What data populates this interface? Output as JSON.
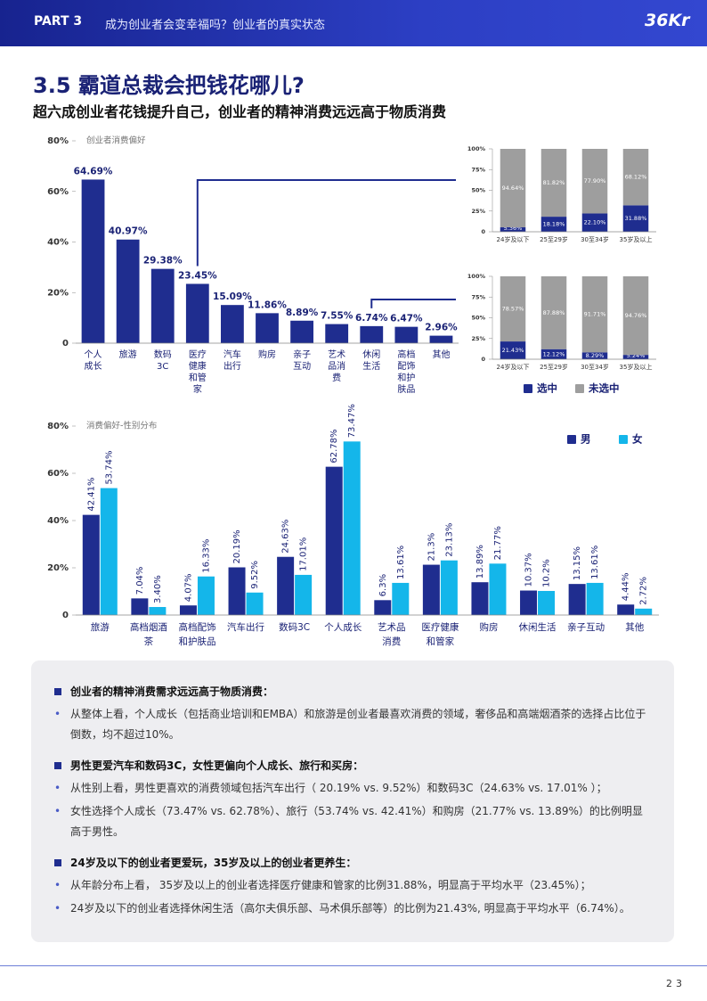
{
  "header": {
    "part": "PART 3",
    "title": "成为创业者会变幸福吗？创业者的真实状态",
    "logo": "36Kr"
  },
  "section": {
    "title": "3.5 霸道总裁会把钱花哪儿?",
    "subtitle": "超六成创业者花钱提升自己，创业者的精神消费远远高于物质消费"
  },
  "chart_data": [
    {
      "type": "bar",
      "title": "创业者消费偏好",
      "categories": [
        "个人\n成长",
        "旅游",
        "数码\n3C",
        "医疗\n健康\n和管\n家",
        "汽车\n出行",
        "购房",
        "亲子\n互动",
        "艺术\n品消\n费",
        "休闲\n生活",
        "高档\n配饰\n和护\n肤品",
        "其他"
      ],
      "values": [
        64.69,
        40.97,
        29.38,
        23.45,
        15.09,
        11.86,
        8.89,
        7.55,
        6.74,
        6.47,
        2.96
      ],
      "value_labels": [
        "64.69%",
        "40.97%",
        "29.38%",
        "23.45%",
        "15.09%",
        "11.86%",
        "8.89%",
        "7.55%",
        "6.74%",
        "6.47%",
        "2.96%"
      ],
      "color": "#1f2d8f",
      "ylim": [
        0,
        80
      ],
      "yticks": [
        0,
        {
          "value": 20,
          "label": "20%"
        },
        {
          "value": 40,
          "label": "40%"
        },
        {
          "value": 60,
          "label": "60%"
        },
        {
          "value": 80,
          "label": "80%"
        }
      ]
    },
    {
      "type": "stacked_bar",
      "categories": [
        "24岁及以下",
        "25至29岁",
        "30至34岁",
        "35岁及以上"
      ],
      "series": [
        {
          "color": "#1f2d8f",
          "values": [
            5.36,
            18.18,
            22.1,
            31.88
          ],
          "value_labels": [
            "5.36%",
            "18.18%",
            "22.10%",
            "31.88%"
          ]
        },
        {
          "color": "#9e9e9e",
          "values": [
            94.64,
            81.82,
            77.9,
            68.12
          ],
          "value_labels": [
            "94.64%",
            "81.82%",
            "77.90%",
            "68.12%"
          ]
        }
      ],
      "ylim": [
        0,
        100
      ],
      "yticks": [
        0,
        {
          "value": 25,
          "label": "25%"
        },
        {
          "value": 50,
          "label": "50%"
        },
        {
          "value": 75,
          "label": "75%"
        },
        {
          "value": 100,
          "label": "100%"
        }
      ]
    },
    {
      "type": "stacked_bar",
      "categories": [
        "24岁及以下",
        "25至29岁",
        "30至34岁",
        "35岁及以上"
      ],
      "series": [
        {
          "name": "选中",
          "color": "#1f2d8f",
          "values": [
            21.43,
            12.12,
            8.29,
            5.24
          ],
          "value_labels": [
            "21.43%",
            "12.12%",
            "8.29%",
            "5.24%"
          ]
        },
        {
          "name": "未选中",
          "color": "#9e9e9e",
          "values": [
            78.57,
            87.88,
            91.71,
            94.76
          ],
          "value_labels": [
            "78.57%",
            "87.88%",
            "91.71%",
            "94.76%"
          ]
        }
      ],
      "ylim": [
        0,
        100
      ],
      "yticks": [
        0,
        {
          "value": 25,
          "label": "25%"
        },
        {
          "value": 50,
          "label": "50%"
        },
        {
          "value": 75,
          "label": "75%"
        },
        {
          "value": 100,
          "label": "100%"
        }
      ]
    },
    {
      "type": "grouped_bar",
      "title": "消费偏好-性别分布",
      "categories": [
        "旅游",
        "高档烟酒\n茶",
        "高档配饰\n和护肤品",
        "汽车出行",
        "数码3C",
        "个人成长",
        "艺术品\n消费",
        "医疗健康\n和管家",
        "购房",
        "休闲生活",
        "亲子互动",
        "其他"
      ],
      "series": [
        {
          "name": "男",
          "color": "#1f2d8f",
          "values": [
            42.41,
            7.04,
            4.07,
            20.19,
            24.63,
            62.78,
            6.3,
            21.3,
            13.89,
            10.37,
            13.15,
            4.44
          ],
          "value_labels": [
            "42.41%",
            "7.04%",
            "4.07%",
            "20.19%",
            "24.63%",
            "62.78%",
            "6.3%",
            "21.3%",
            "13.89%",
            "10.37%",
            "13.15%",
            "4.44%"
          ]
        },
        {
          "name": "女",
          "color": "#14b6ea",
          "values": [
            53.74,
            3.4,
            16.33,
            9.52,
            17.01,
            73.47,
            13.61,
            23.13,
            21.77,
            10.2,
            13.61,
            2.72
          ],
          "value_labels": [
            "53.74%",
            "3.40%",
            "16.33%",
            "9.52%",
            "17.01%",
            "73.47%",
            "13.61%",
            "23.13%",
            "21.77%",
            "10.2%",
            "13.61%",
            "2.72%"
          ]
        }
      ],
      "ylim": [
        0,
        80
      ],
      "yticks": [
        0,
        {
          "value": 20,
          "label": "20%"
        },
        {
          "value": 40,
          "label": "40%"
        },
        {
          "value": 60,
          "label": "60%"
        },
        {
          "value": 80,
          "label": "80%"
        }
      ]
    }
  ],
  "notes": [
    {
      "heading": "创业者的精神消费需求远远高于物质消费：",
      "bullets": [
        "从整体上看，个人成长（包括商业培训和EMBA）和旅游是创业者最喜欢消费的领域，奢侈品和高端烟酒茶的选择占比位于倒数，均不超过10%。"
      ]
    },
    {
      "heading": "男性更爱汽车和数码3C，女性更偏向个人成长、旅行和买房：",
      "bullets": [
        "从性别上看，男性更喜欢的消费领域包括汽车出行（ 20.19% vs. 9.52%）和数码3C（24.63% vs. 17.01% ）；",
        "女性选择个人成长（73.47% vs. 62.78%）、旅行（53.74% vs. 42.41%）和购房（21.77% vs. 13.89%）的比例明显高于男性。"
      ]
    },
    {
      "heading": "24岁及以下的创业者更爱玩，35岁及以上的创业者更养生：",
      "bullets": [
        "从年龄分布上看， 35岁及以上的创业者选择医疗健康和管家的比例31.88%，明显高于平均水平（23.45%）；",
        "24岁及以下的创业者选择休闲生活（高尔夫俱乐部、马术俱乐部等）的比例为21.43%, 明显高于平均水平（6.74%）。"
      ]
    }
  ],
  "page_number": "23"
}
